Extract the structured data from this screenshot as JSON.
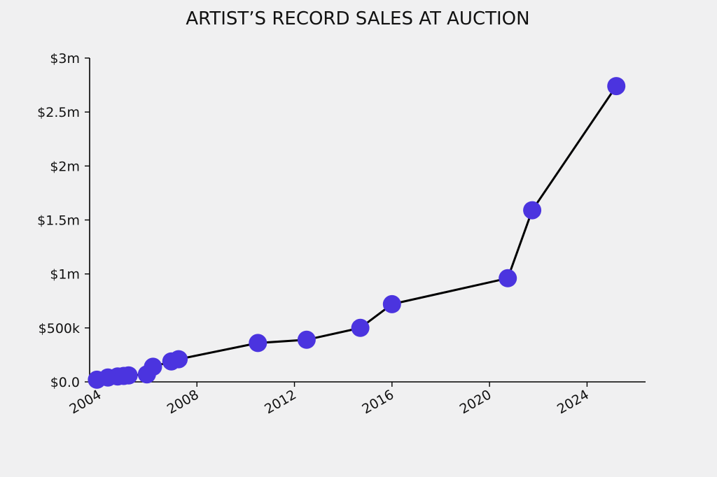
{
  "chart_data": {
    "type": "line",
    "title": "ARTIST’S RECORD SALES AT AUCTION",
    "xlabel": "",
    "ylabel": "",
    "xlim": [
      2003.6,
      2026.4
    ],
    "ylim": [
      0,
      3000000
    ],
    "x_ticks": [
      2004,
      2008,
      2012,
      2016,
      2020,
      2024
    ],
    "x_tick_labels": [
      "2004",
      "2008",
      "2012",
      "2016",
      "2020",
      "2024"
    ],
    "y_ticks": [
      0,
      500000,
      1000000,
      1500000,
      2000000,
      2500000,
      3000000
    ],
    "y_tick_labels": [
      "$0.0",
      "$500k",
      "$1m",
      "$1.5m",
      "$2m",
      "$2.5m",
      "$3m"
    ],
    "grid": false,
    "colors": {
      "line": "#000000",
      "marker": "#4b34df",
      "background": "#f0f0f1"
    },
    "series": [
      {
        "x": [
          2003.9,
          2004.35,
          2004.75,
          2005.0,
          2005.2,
          2005.95,
          2006.2,
          2006.95,
          2007.25,
          2010.5,
          2012.5,
          2014.7,
          2016.0,
          2020.75,
          2021.75,
          2025.2
        ],
        "y": [
          20000,
          40000,
          50000,
          55000,
          60000,
          70000,
          140000,
          190000,
          210000,
          360000,
          390000,
          500000,
          720000,
          960000,
          1590000,
          2740000
        ]
      }
    ]
  }
}
